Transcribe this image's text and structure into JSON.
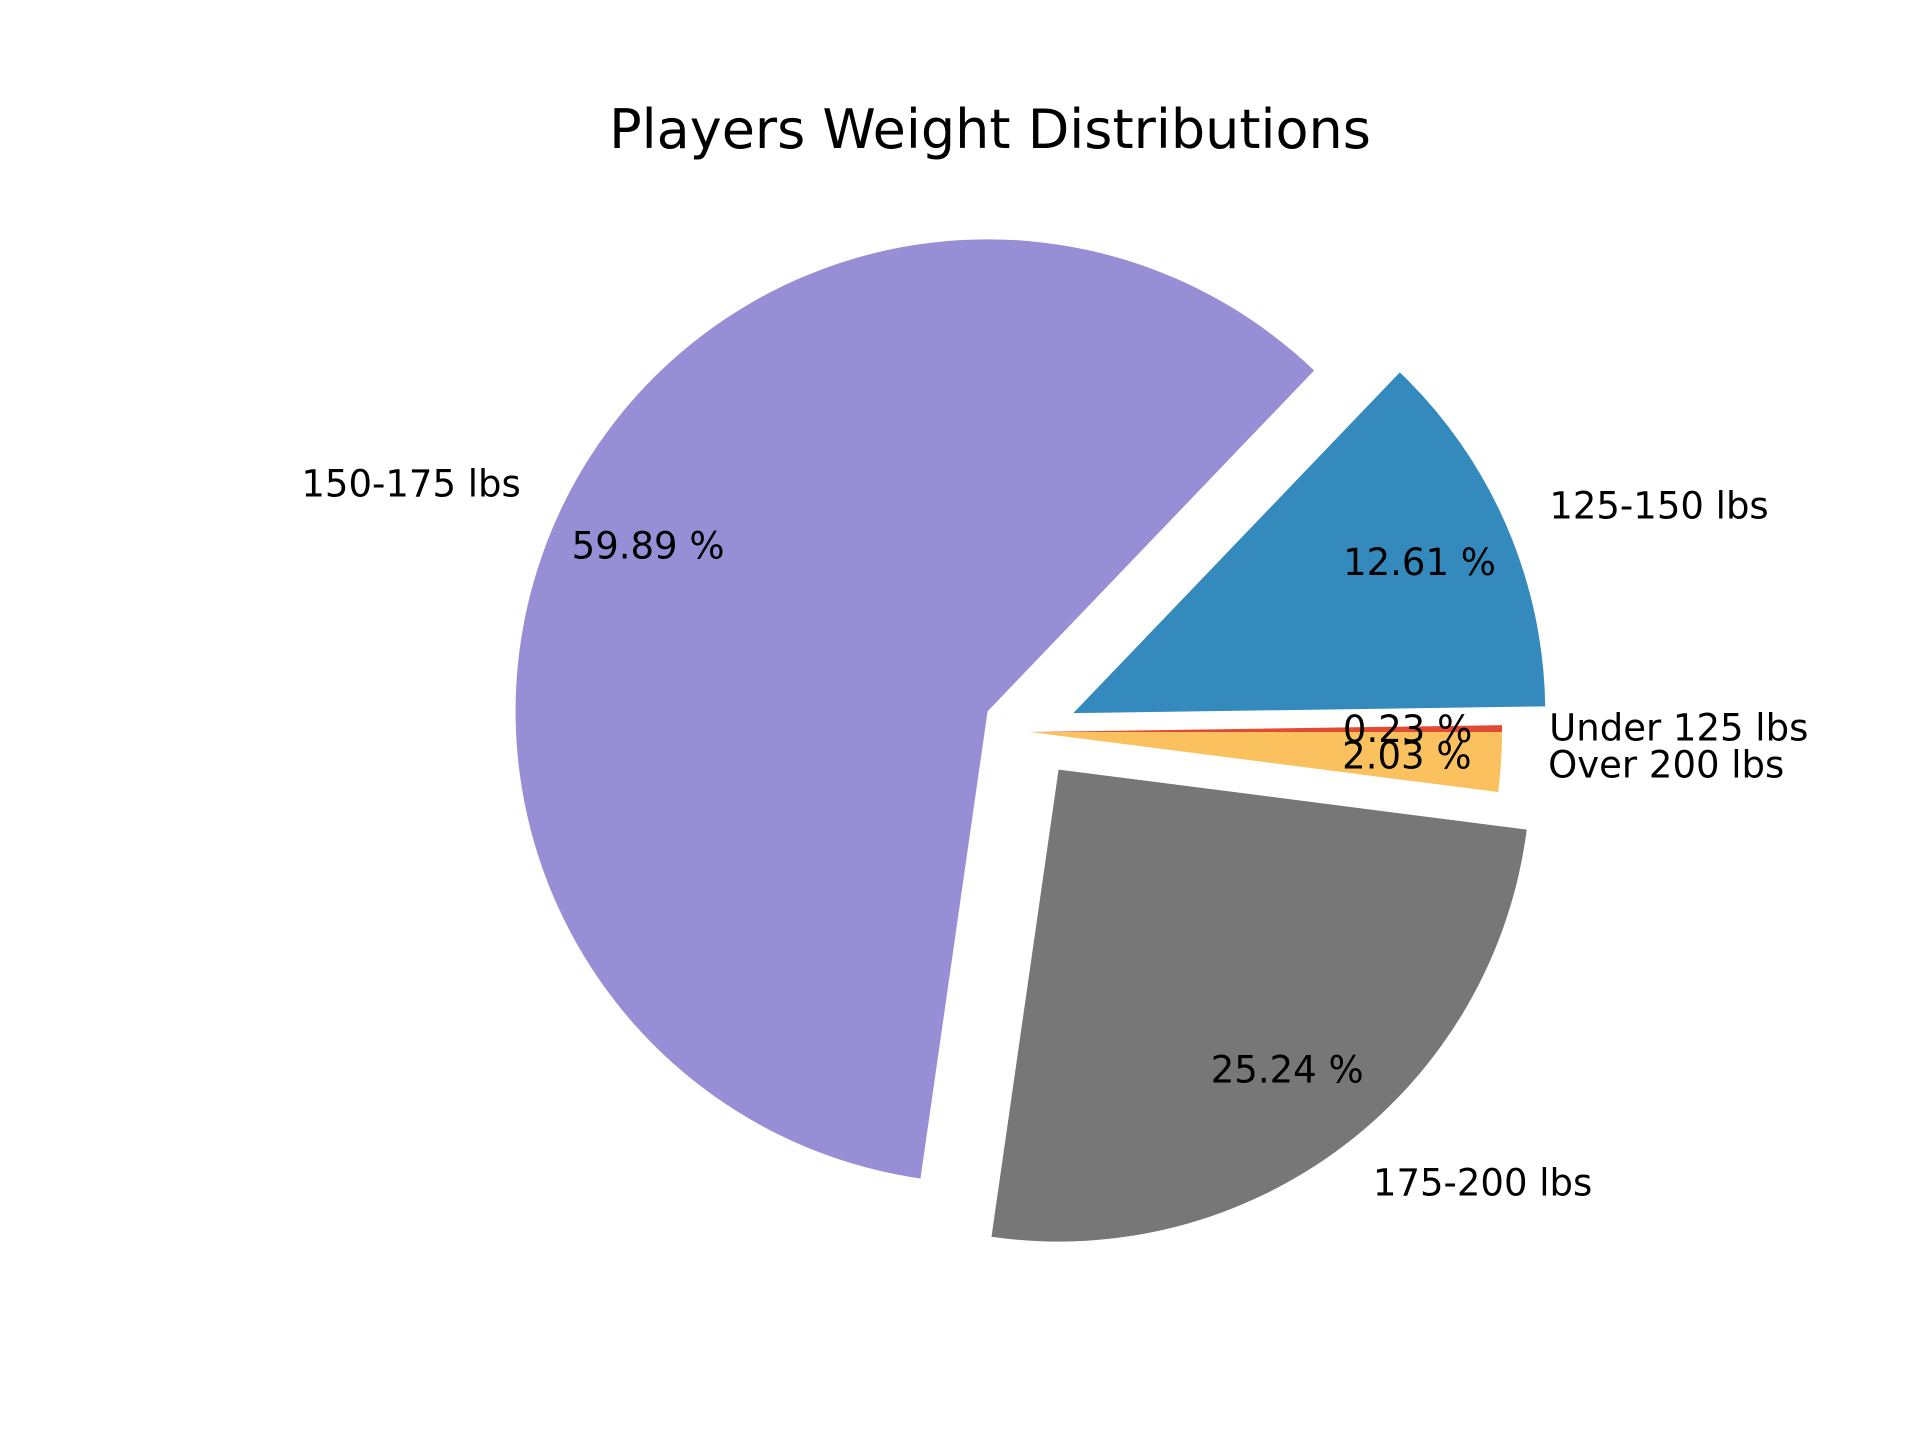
{
  "chart_data": {
    "type": "pie",
    "title": "Players Weight Distributions",
    "start_angle_deg": 0,
    "direction": "counterclockwise",
    "categories": [
      "Under 125 lbs",
      "125-150 lbs",
      "150-175 lbs",
      "175-200 lbs",
      "Over 200 lbs"
    ],
    "values": [
      0.23,
      12.61,
      59.89,
      25.24,
      2.03
    ],
    "value_labels": [
      "0.23 %",
      "12.61 %",
      "59.89 %",
      "25.24 %",
      "2.03 %"
    ],
    "exploded": [
      false,
      true,
      true,
      true,
      false
    ],
    "colors": [
      "#E24A33",
      "#348ABD",
      "#988ED5",
      "#777777",
      "#FBC15E"
    ]
  }
}
